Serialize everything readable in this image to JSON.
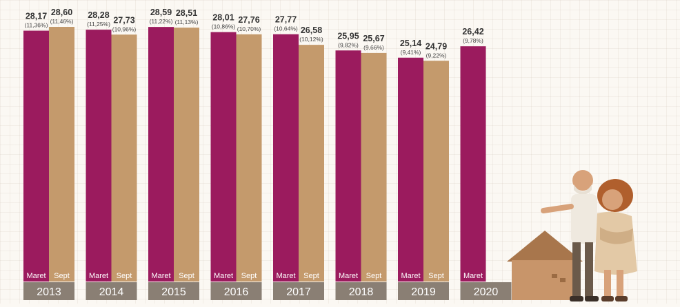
{
  "chart_data": {
    "type": "bar",
    "title": "",
    "xlabel": "",
    "ylabel": "",
    "ylim": [
      0,
      28.6
    ],
    "categories": [
      "2013",
      "2014",
      "2015",
      "2016",
      "2017",
      "2018",
      "2019",
      "2020"
    ],
    "series": [
      {
        "name": "Maret",
        "color": "#9b1b5e",
        "values": [
          28.17,
          28.28,
          28.59,
          28.01,
          27.77,
          25.95,
          25.14,
          26.42
        ],
        "value_labels": [
          "28,17",
          "28,28",
          "28,59",
          "28,01",
          "27,77",
          "25,95",
          "25,14",
          "26,42"
        ],
        "percent_labels": [
          "(11,36%)",
          "(11,25%)",
          "(11,22%)",
          "(10,86%)",
          "(10,64%)",
          "(9,82%)",
          "(9,41%)",
          "(9,78%)"
        ]
      },
      {
        "name": "Sept",
        "color": "#c49a6c",
        "values": [
          28.6,
          27.73,
          28.51,
          27.76,
          26.58,
          25.67,
          24.79,
          null
        ],
        "value_labels": [
          "28,60",
          "27,73",
          "28,51",
          "27,76",
          "26,58",
          "25,67",
          "24,79",
          ""
        ],
        "percent_labels": [
          "(11,46%)",
          "(10,96%)",
          "(11,13%)",
          "(10,70%)",
          "(10,12%)",
          "(9,66%)",
          "(9,22%)",
          ""
        ]
      }
    ],
    "year_band_color": "#8a7f74",
    "value_label_color": "#333333"
  },
  "illustration": {
    "name": "elderly-couple-with-house",
    "colors": {
      "house": "#c8956a",
      "skin": "#d8a27a",
      "scarf": "#e3c9a6",
      "hair": "#b05f2d"
    }
  }
}
